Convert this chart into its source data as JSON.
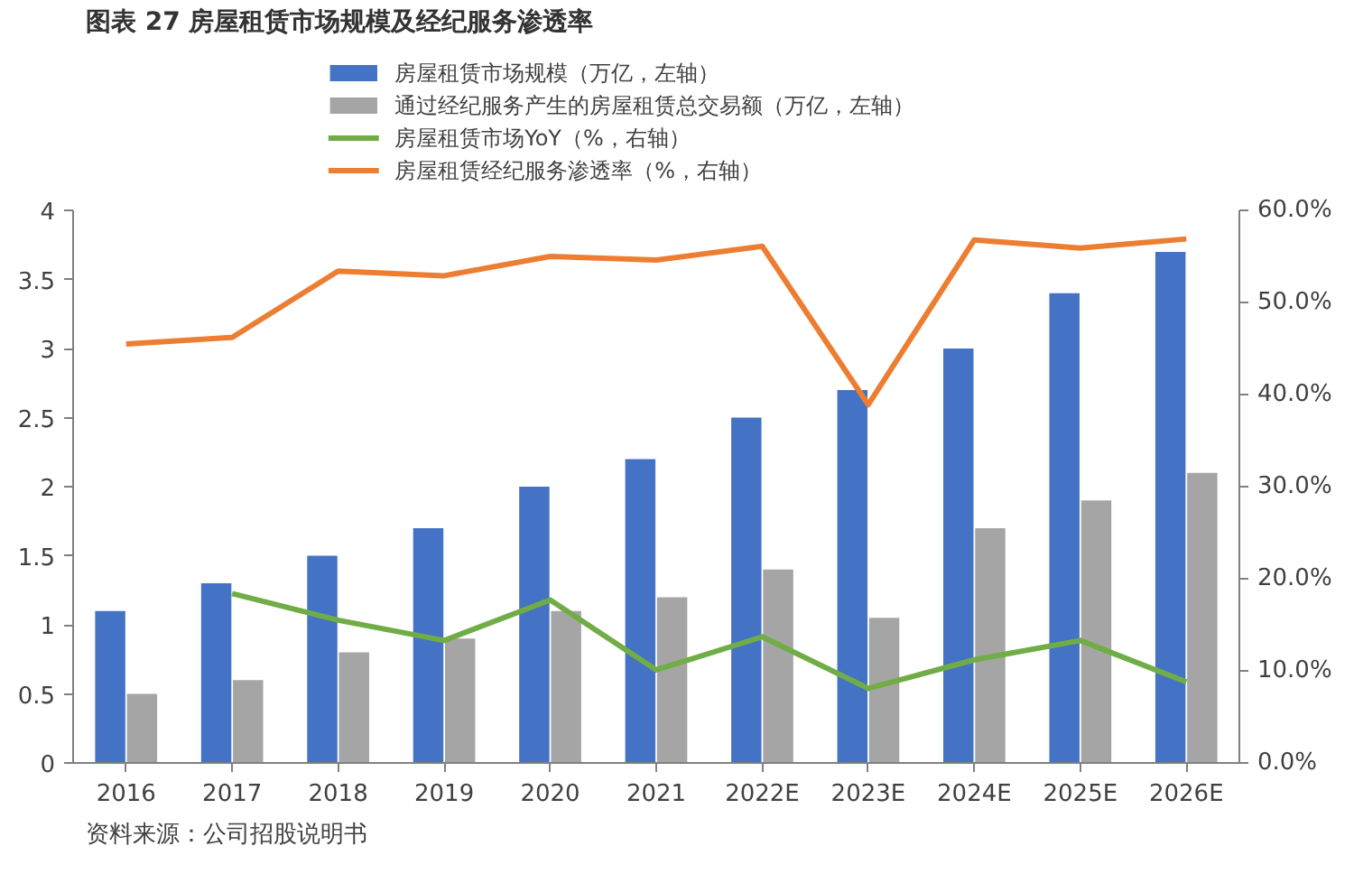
{
  "chart_data": {
    "type": "bar",
    "title": "图表 27  房屋租赁市场规模及经纪服务渗透率",
    "categories": [
      "2016",
      "2017",
      "2018",
      "2019",
      "2020",
      "2021",
      "2022E",
      "2023E",
      "2024E",
      "2025E",
      "2026E"
    ],
    "series": [
      {
        "name": "房屋租赁市场规模（万亿，左轴）",
        "color": "#4472c4",
        "values": [
          1.1,
          1.3,
          1.5,
          1.7,
          2.0,
          2.2,
          2.5,
          2.7,
          3.0,
          3.4,
          3.7
        ]
      },
      {
        "name": "通过经纪服务产生的房屋租赁总交易额（万亿，左轴）",
        "color": "#a5a5a5",
        "values": [
          0.5,
          0.6,
          0.8,
          0.9,
          1.1,
          1.2,
          1.4,
          1.05,
          1.7,
          1.9,
          2.1
        ]
      },
      {
        "name": "房屋租赁市场YoY（%，右轴）",
        "color": "#70ad47",
        "type": "line",
        "axis": "y2",
        "values": [
          null,
          18.4,
          15.5,
          13.3,
          17.7,
          10.1,
          13.7,
          8.1,
          11.2,
          13.3,
          8.8
        ]
      },
      {
        "name": "房屋租赁经纪服务渗透率（%，右轴）",
        "color": "#ed7d31",
        "type": "line",
        "axis": "y2",
        "values": [
          45.5,
          46.2,
          53.4,
          52.9,
          55.0,
          54.6,
          56.1,
          38.9,
          56.8,
          55.9,
          56.9
        ]
      }
    ],
    "ylim": [
      0,
      4
    ],
    "yticks": [
      0,
      0.5,
      1,
      1.5,
      2,
      2.5,
      3,
      3.5,
      4
    ],
    "y2lim": [
      0,
      60
    ],
    "y2ticks": [
      {
        "value": 0,
        "label": "0.0%"
      },
      {
        "value": 10,
        "label": "10.0%"
      },
      {
        "value": 20,
        "label": "20.0%"
      },
      {
        "value": 30,
        "label": "30.0%"
      },
      {
        "value": 40,
        "label": "40.0%"
      },
      {
        "value": 50,
        "label": "50.0%"
      },
      {
        "value": 60,
        "label": "60.0%"
      }
    ],
    "grid": false,
    "legend": "top",
    "annotations": [
      "资料来源：公司招股说明书"
    ]
  }
}
